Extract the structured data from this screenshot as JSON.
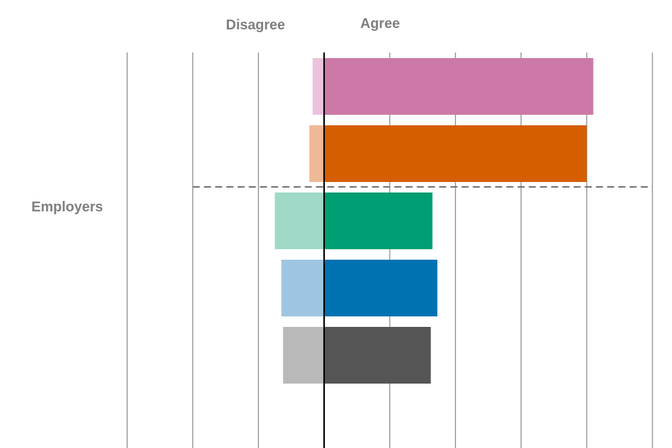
{
  "chart_data": {
    "type": "bar",
    "orientation": "horizontal-diverging",
    "headers": {
      "negative": "Disagree",
      "positive": "Agree"
    },
    "group_label": "Employers",
    "xlim": [
      -60,
      100
    ],
    "gridlines": [
      -60,
      -40,
      -20,
      0,
      20,
      40,
      60,
      80,
      100
    ],
    "grid": true,
    "legend": "none",
    "separator_after_bar": 2,
    "bars": [
      {
        "disagree": 3.5,
        "agree": 82,
        "color": "#cc79a7",
        "color_light": "#ebc3dc"
      },
      {
        "disagree": 4.5,
        "agree": 80,
        "color": "#d55e00",
        "color_light": "#f0b996"
      },
      {
        "disagree": 15,
        "agree": 33,
        "color": "#009e73",
        "color_light": "#9fd9c7"
      },
      {
        "disagree": 13,
        "agree": 34.5,
        "color": "#0072b2",
        "color_light": "#9fc6e1"
      },
      {
        "disagree": 12.5,
        "agree": 32.5,
        "color": "#555555",
        "color_light": "#b9b9b9"
      }
    ]
  }
}
